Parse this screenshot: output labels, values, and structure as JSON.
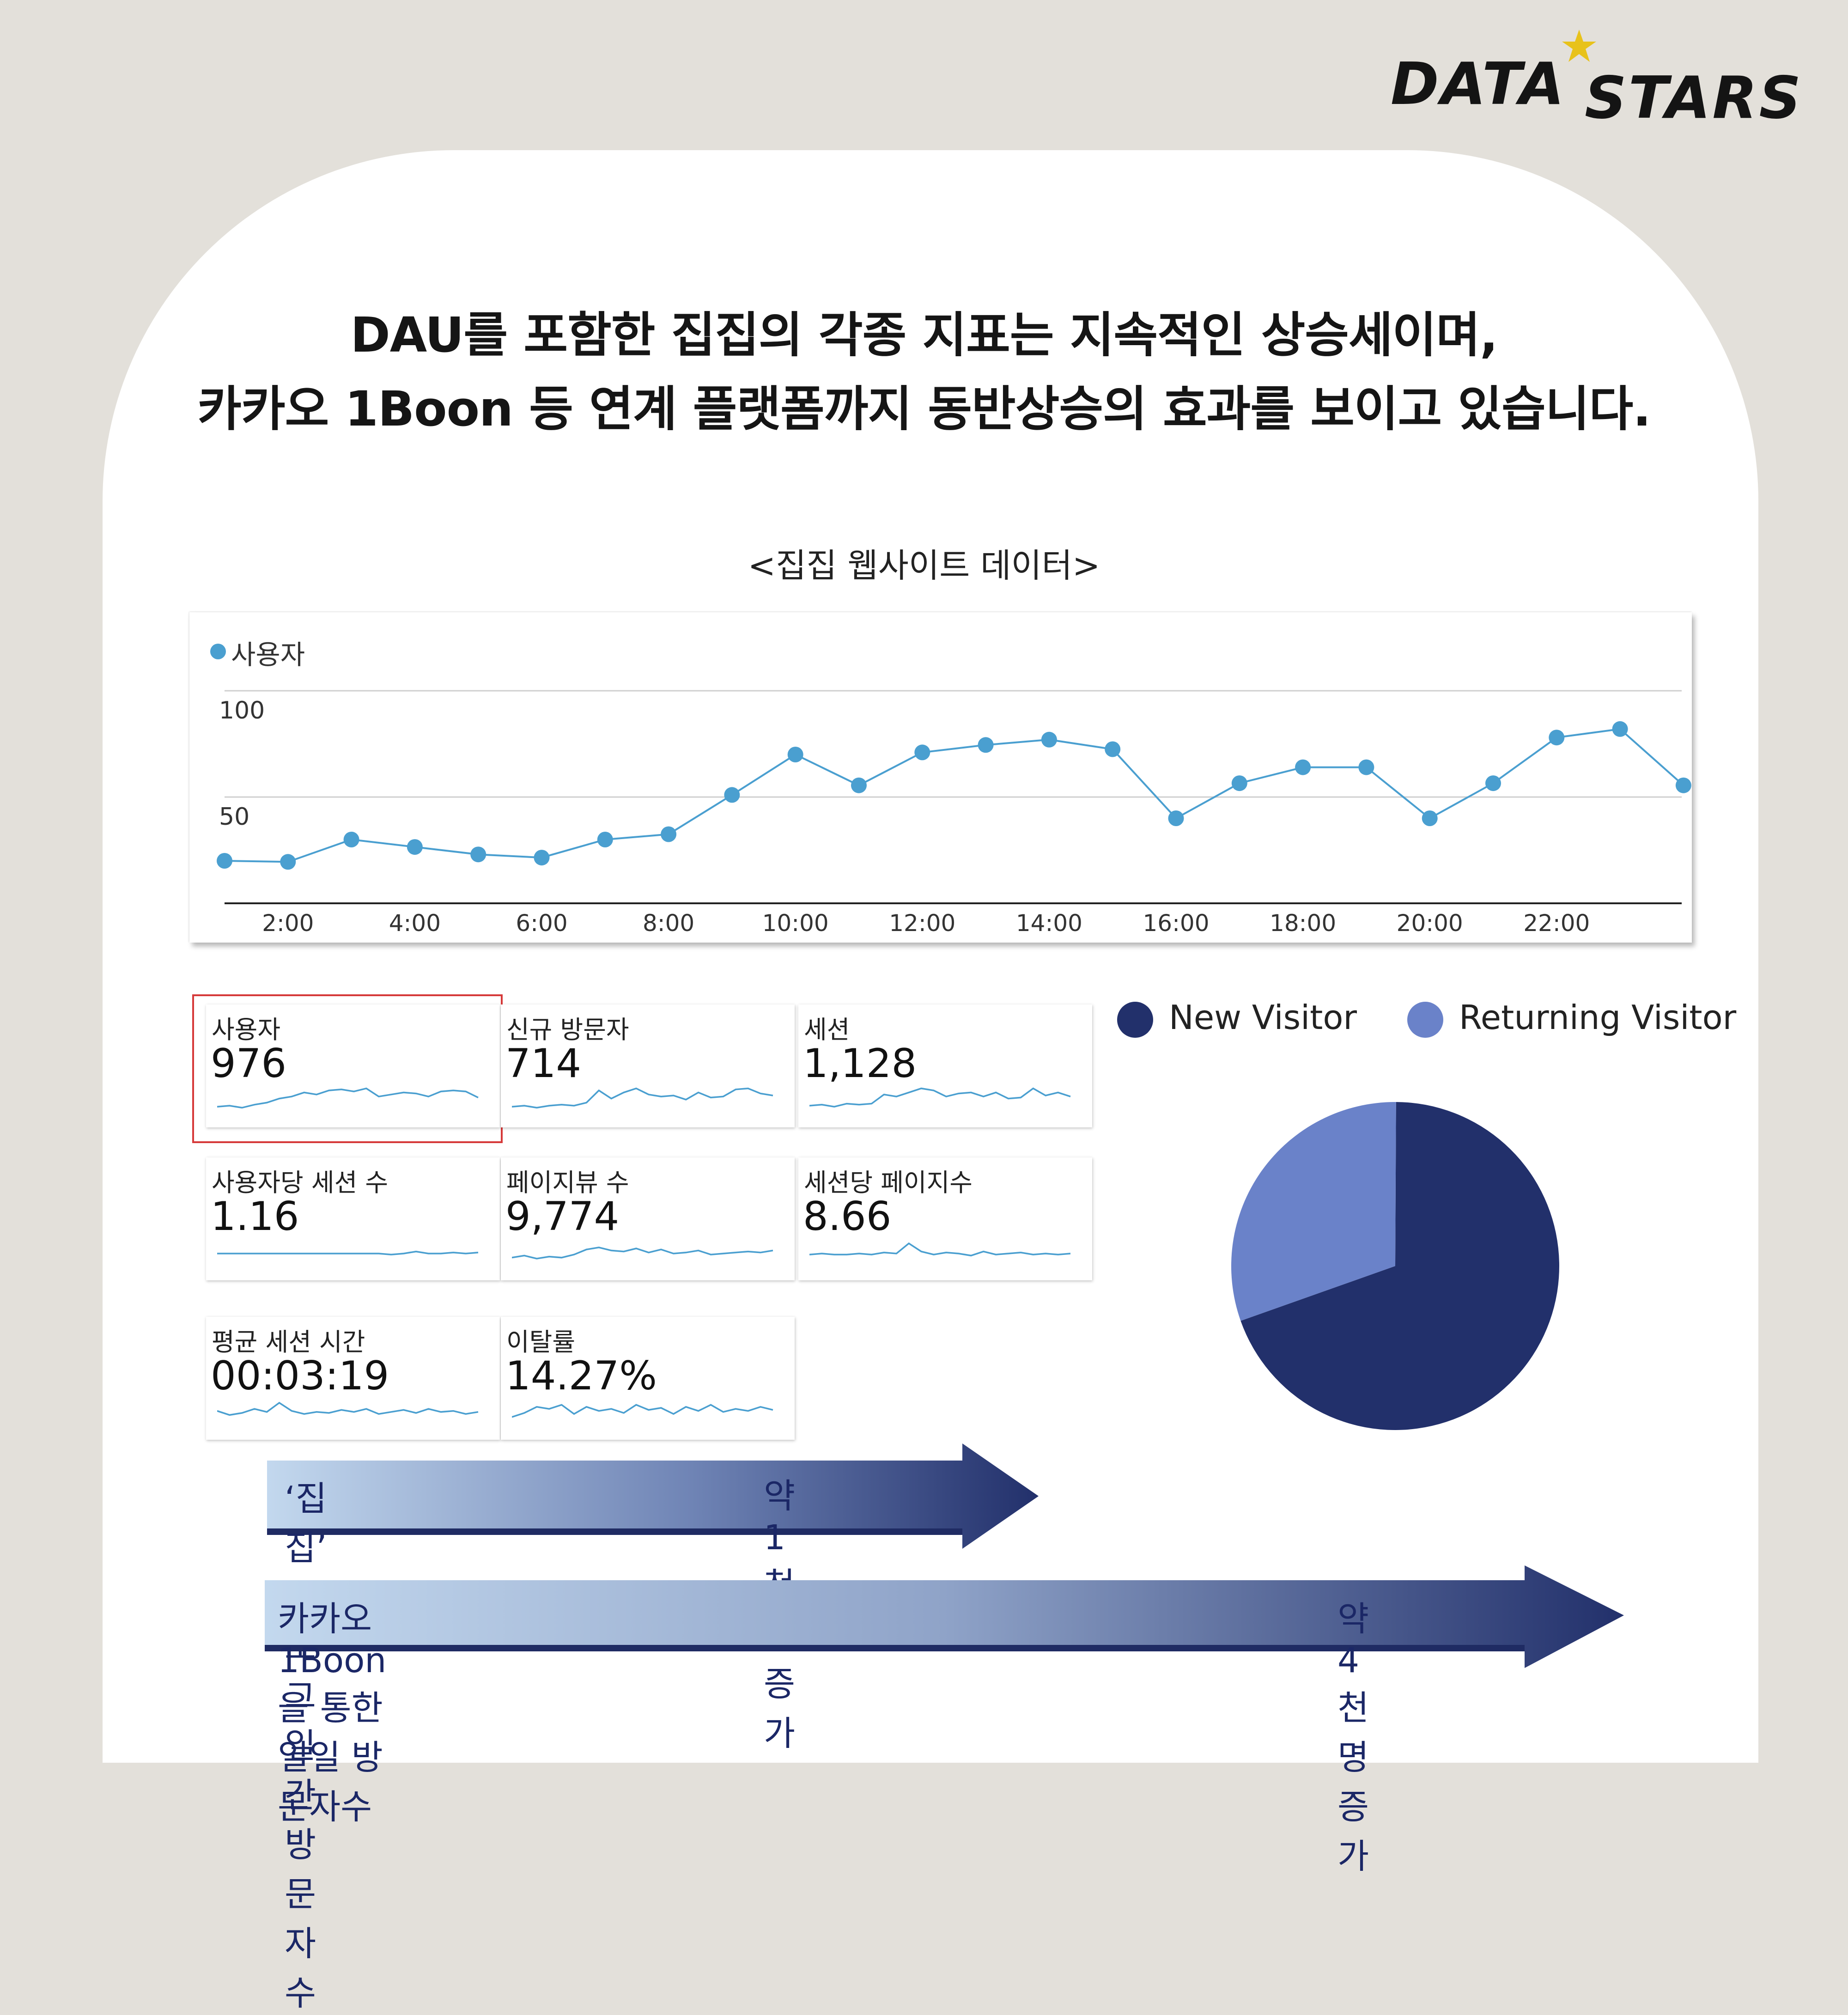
{
  "brand": {
    "logo_text_1": "DATA",
    "logo_text_2": "STARS"
  },
  "headline": {
    "line1": "DAU를 포함한 집집의 각종 지표는 지속적인 상승세이며,",
    "line2": "카카오 1Boon 등  연계 플랫폼까지  동반상승의 효과를 보이고 있습니다."
  },
  "section_title": "<집집 웹사이트 데이터>",
  "chart_data": [
    {
      "type": "line",
      "legend": [
        "사용자"
      ],
      "series": [
        {
          "name": "사용자",
          "values": [
            20,
            19.5,
            30,
            26.5,
            23,
            21.5,
            30,
            32.5,
            51,
            70,
            55.5,
            71,
            74.5,
            77,
            72.5,
            40,
            56.5,
            64,
            64,
            40,
            56.5,
            78,
            82,
            55.5
          ]
        }
      ],
      "x": [
        0,
        1,
        2,
        3,
        4,
        5,
        6,
        7,
        8,
        9,
        10,
        11,
        12,
        13,
        14,
        15,
        16,
        17,
        18,
        19,
        20,
        21,
        22,
        23
      ],
      "xticks": [
        "2:00",
        "4:00",
        "6:00",
        "8:00",
        "10:00",
        "12:00",
        "14:00",
        "16:00",
        "18:00",
        "20:00",
        "22:00"
      ],
      "yticks": [
        "100",
        "50"
      ],
      "ylim": [
        0,
        100
      ],
      "grid": true,
      "color": "#4a9fd0"
    },
    {
      "type": "pie",
      "legend": [
        "New Visitor",
        "Returning Visitor"
      ],
      "values": [
        69.5,
        30.5
      ],
      "colors": [
        "#22306b",
        "#6a82c9"
      ]
    }
  ],
  "tiles": [
    {
      "label": "사용자",
      "value": "976"
    },
    {
      "label": "신규 방문자",
      "value": "714"
    },
    {
      "label": "세션",
      "value": "1,128"
    },
    {
      "label": "사용자당 세션 수",
      "value": "1.16"
    },
    {
      "label": "페이지뷰 수",
      "value": "9,774"
    },
    {
      "label": "세션당 페이지수",
      "value": "8.66"
    },
    {
      "label": "평균 세션 시간",
      "value": "00:03:19"
    },
    {
      "label": "이탈률",
      "value": "14.27%"
    }
  ],
  "arrows": [
    {
      "left_text": "‘집집’ 블로그  일간 방문자수",
      "right_text": "약 1천명  증가"
    },
    {
      "left_text": "카카오 1Boon을 통한  일일 방문자수",
      "right_text": "약 4천명  증가"
    }
  ],
  "colors": {
    "line": "#4a9fd0",
    "navy": "#22306b",
    "light_blue": "#6a82c9",
    "background": "#e3e0da"
  }
}
